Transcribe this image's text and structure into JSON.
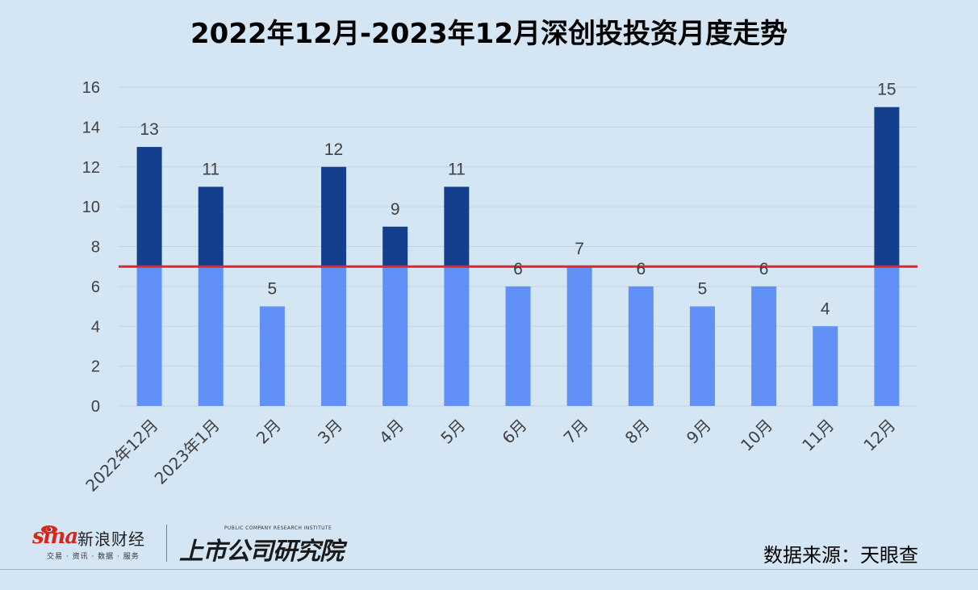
{
  "title": "2022年12月-2023年12月深创投投资月度走势",
  "source": "数据来源：天眼查",
  "logos": {
    "sina_word": "sina",
    "sina_name": "新浪财经",
    "sina_tagline": "交易 · 资讯 · 数据 · 服务",
    "institute_en": "PUBLIC COMPANY RESEARCH INSTITUTE",
    "institute_cn": "上市公司研究院"
  },
  "colors": {
    "background": "#d4e6f4",
    "bar_light": "#6190f7",
    "bar_dark": "#133f8c",
    "reference_line": "#e0262b",
    "grid": "#c3d3df",
    "axis_text": "#404040"
  },
  "chart_data": {
    "type": "bar",
    "title": "2022年12月-2023年12月深创投投资月度走势",
    "categories": [
      "2022年12月",
      "2023年1月",
      "2月",
      "3月",
      "4月",
      "5月",
      "6月",
      "7月",
      "8月",
      "9月",
      "10月",
      "11月",
      "12月"
    ],
    "values": [
      13,
      11,
      5,
      12,
      9,
      11,
      6,
      7,
      6,
      5,
      6,
      4,
      15
    ],
    "data_labels": [
      "13",
      "11",
      "5",
      "12",
      "9",
      "11",
      "6",
      "7",
      "6",
      "5",
      "6",
      "4",
      "15"
    ],
    "reference_line": 7,
    "ylim": [
      0,
      16
    ],
    "yticks": [
      0,
      2,
      4,
      6,
      8,
      10,
      12,
      14,
      16
    ],
    "xlabel": "",
    "ylabel": "",
    "grid": true,
    "legend": "none"
  }
}
